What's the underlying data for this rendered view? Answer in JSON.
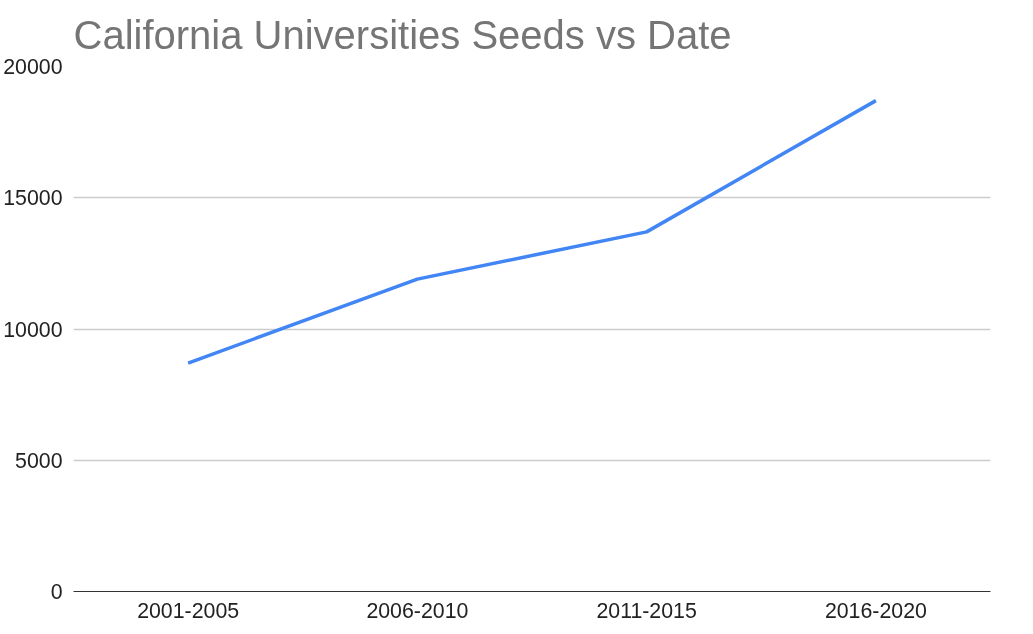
{
  "chart_data": {
    "type": "line",
    "title": "California Universities Seeds vs Date",
    "categories": [
      "2001-2005",
      "2006-2010",
      "2011-2015",
      "2016-2020"
    ],
    "series": [
      {
        "color": "#4285f4",
        "values": [
          8700,
          11900,
          13700,
          18700
        ]
      }
    ],
    "ylim": [
      0,
      20000
    ],
    "yticks": [
      0,
      5000,
      10000,
      15000,
      20000
    ],
    "grid": "y",
    "marker": "none",
    "line_style": "solid"
  }
}
